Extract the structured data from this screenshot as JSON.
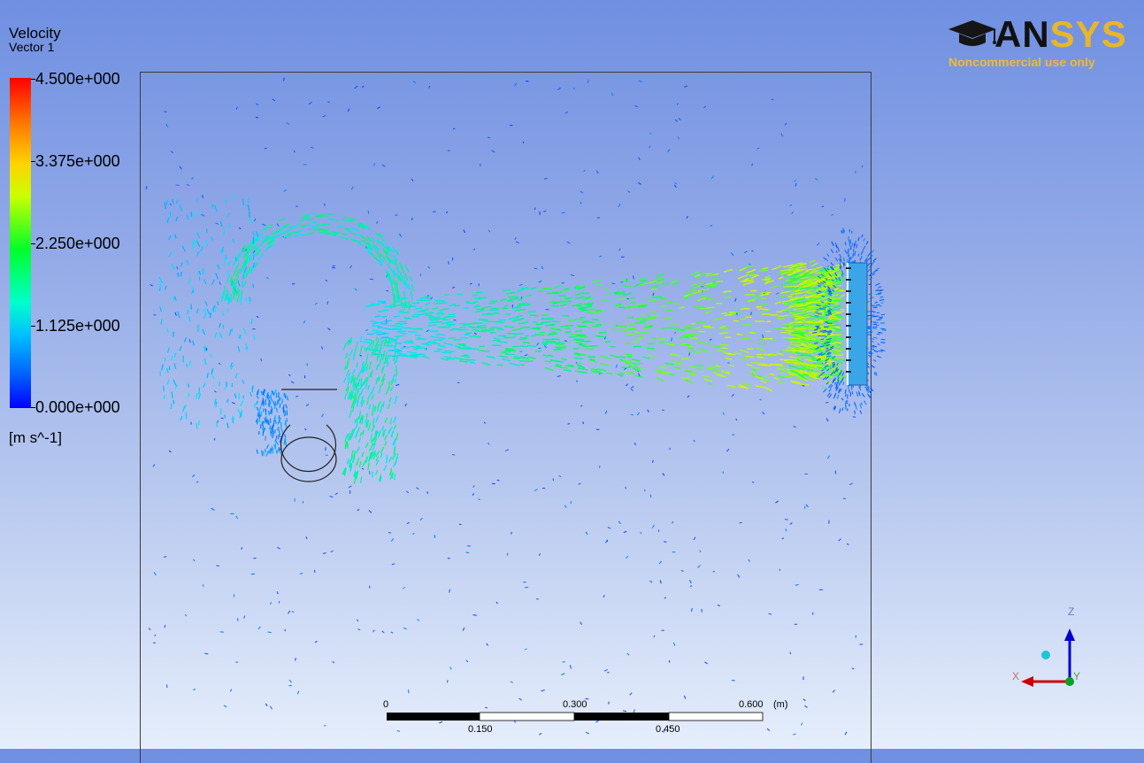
{
  "legend": {
    "title": "Velocity",
    "subtitle": "Vector 1",
    "labels": [
      "4.500e+000",
      "3.375e+000",
      "2.250e+000",
      "1.125e+000",
      "0.000e+000"
    ],
    "unit": "[m s^-1]"
  },
  "logo": {
    "word_part1": "AN",
    "word_part2": "SYS",
    "tagline": "Noncommercial use only",
    "icon": "graduation-cap-icon"
  },
  "scale_bar": {
    "top_labels": [
      "0",
      "0.300",
      "0.600"
    ],
    "unit": "(m)",
    "bottom_labels": [
      "0.150",
      "0.450"
    ]
  },
  "axes": {
    "z_label": "Z",
    "x_label": "X",
    "y_label": "Y"
  },
  "colors": {
    "background_top": "#6f8fe1",
    "background_bottom": "#e6eefc",
    "accent_logo": "#f0bb2c",
    "z_axis": "#0000cc",
    "x_axis": "#cc0000",
    "y_axis": "#00aa00"
  }
}
